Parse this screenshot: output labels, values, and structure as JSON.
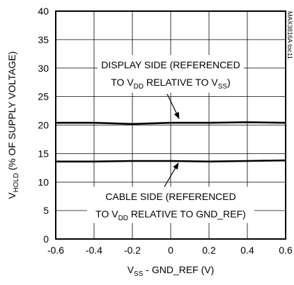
{
  "chart_data": {
    "type": "line",
    "x": [
      -0.6,
      -0.4,
      -0.2,
      0,
      0.2,
      0.4,
      0.6
    ],
    "series": [
      {
        "name": "DISPLAY SIDE",
        "color": "#000000",
        "values": [
          20.4,
          20.4,
          20.2,
          20.4,
          20.4,
          20.5,
          20.4
        ]
      },
      {
        "name": "CABLE SIDE",
        "color": "#000000",
        "values": [
          13.6,
          13.6,
          13.7,
          13.7,
          13.6,
          13.7,
          13.8
        ]
      }
    ],
    "xlim": [
      -0.6,
      0.6
    ],
    "xticks": [
      -0.6,
      -0.4,
      -0.2,
      0,
      0.2,
      0.4,
      0.6
    ],
    "ylim": [
      0,
      40
    ],
    "yticks": [
      0,
      5,
      10,
      15,
      20,
      25,
      30,
      35,
      40
    ],
    "grid": true,
    "xlabel": [
      "V",
      "SS",
      " - GND_REF (V)"
    ],
    "ylabel": [
      "V",
      "HOLD",
      " (% OF SUPPLY VOLTAGE)"
    ],
    "annotations": [
      {
        "lines": [
          [
            "DISPLAY SIDE (REFERENCED"
          ],
          [
            "TO V",
            "DD",
            " RELATIVE TO V",
            "SS",
            ")"
          ]
        ]
      },
      {
        "lines": [
          [
            "CABLE SIDE (REFERENCED"
          ],
          [
            "TO V",
            "DD",
            " RELATIVE TO GND_REF)"
          ]
        ]
      }
    ],
    "figure_id": "MAX3816A toc11"
  }
}
